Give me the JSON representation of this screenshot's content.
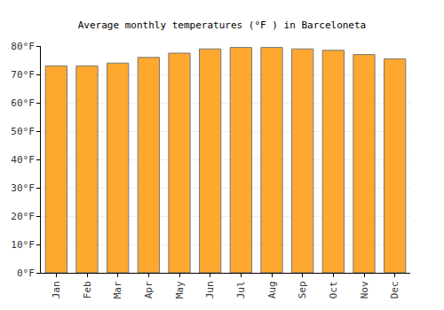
{
  "chart_data": {
    "type": "bar",
    "title": "Average monthly temperatures (°F ) in Barceloneta",
    "categories": [
      "Jan",
      "Feb",
      "Mar",
      "Apr",
      "May",
      "Jun",
      "Jul",
      "Aug",
      "Sep",
      "Oct",
      "Nov",
      "Dec"
    ],
    "values": [
      73,
      73,
      74,
      76,
      77.5,
      79,
      79.5,
      79.5,
      79,
      78.5,
      77,
      75.5
    ],
    "color": "#ffa830",
    "ylim": [
      0,
      80
    ],
    "yticks": [
      {
        "value": 0,
        "label": "0°F"
      },
      {
        "value": 10,
        "label": "10°F"
      },
      {
        "value": 20,
        "label": "20°F"
      },
      {
        "value": 30,
        "label": "30°F"
      },
      {
        "value": 40,
        "label": "40°F"
      },
      {
        "value": 50,
        "label": "50°F"
      },
      {
        "value": 60,
        "label": "60°F"
      },
      {
        "value": 70,
        "label": "70°F"
      },
      {
        "value": 80,
        "label": "80°F"
      }
    ],
    "grid": true
  }
}
